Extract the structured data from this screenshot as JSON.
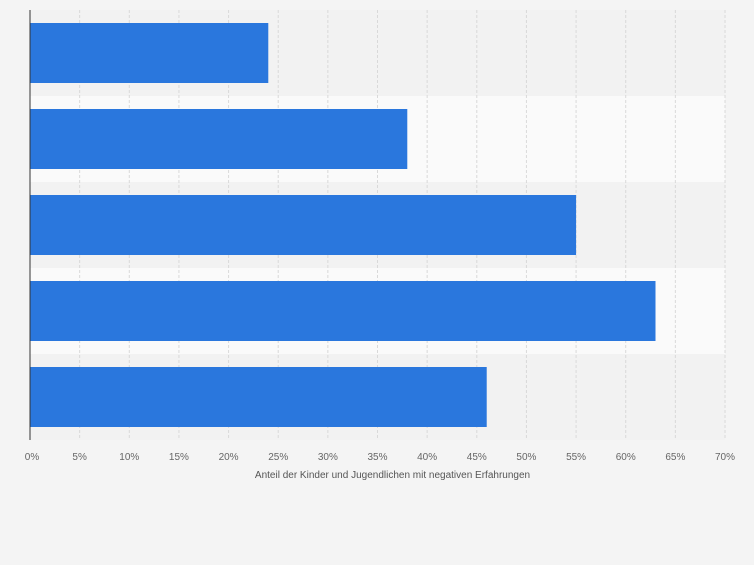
{
  "chart_data": {
    "type": "bar",
    "orientation": "horizontal",
    "title": "",
    "xlabel": "Anteil der Kinder und Jugendlichen mit negativen Erfahrungen",
    "ylabel": "",
    "categories": [
      "",
      "",
      "",
      "",
      ""
    ],
    "values": [
      24,
      38,
      55,
      63,
      46
    ],
    "xlim": [
      0,
      70
    ],
    "x_ticks": [
      0,
      5,
      10,
      15,
      20,
      25,
      30,
      35,
      40,
      45,
      50,
      55,
      60,
      65,
      70
    ],
    "x_tick_labels": [
      "0%",
      "5%",
      "10%",
      "15%",
      "20%",
      "25%",
      "30%",
      "35%",
      "40%",
      "45%",
      "50%",
      "55%",
      "60%",
      "65%",
      "70%"
    ],
    "grid": true,
    "legend": "none",
    "colors": {
      "bar": "#2a77dd",
      "page_bg": "#f4f4f4",
      "band_light": "#fafafa",
      "band_dark": "#f2f2f2",
      "grid": "#d9d9d9",
      "axis": "#333333",
      "tick_text": "#666666",
      "axis_label": "#555555"
    }
  }
}
